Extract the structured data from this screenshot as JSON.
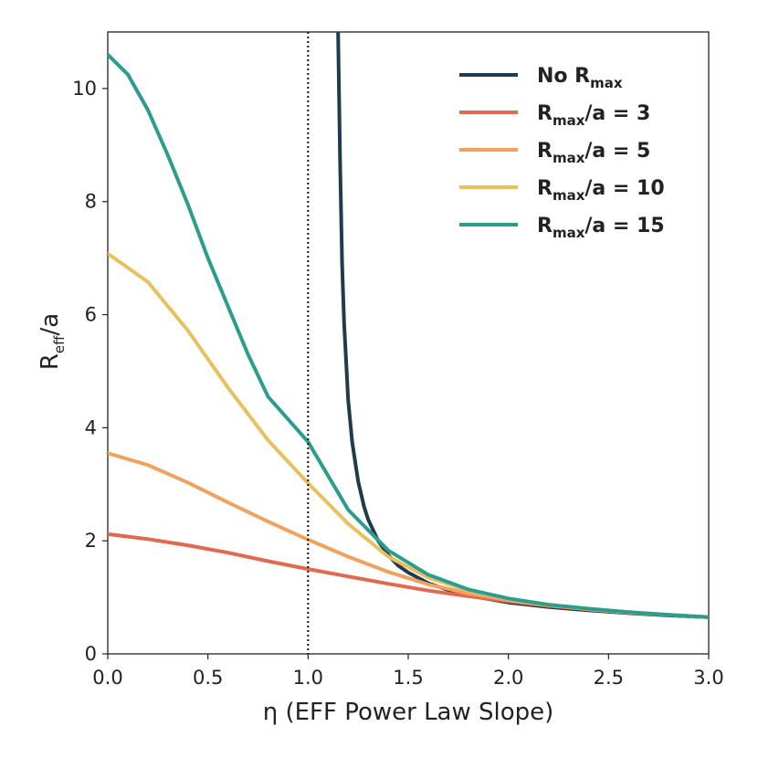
{
  "chart_data": {
    "type": "line",
    "xlabel": "η (EFF Power Law Slope)",
    "ylabel_main": "R",
    "ylabel_sub": "eff",
    "ylabel_rest": "/a",
    "xlim": [
      0,
      3
    ],
    "ylim": [
      0,
      11
    ],
    "xticks": [
      0.0,
      0.5,
      1.0,
      1.5,
      2.0,
      2.5,
      3.0
    ],
    "xtick_labels": [
      "0.0",
      "0.5",
      "1.0",
      "1.5",
      "2.0",
      "2.5",
      "3.0"
    ],
    "yticks": [
      0,
      2,
      4,
      6,
      8,
      10
    ],
    "ytick_labels": [
      "0",
      "2",
      "4",
      "6",
      "8",
      "10"
    ],
    "vline_x": 1.0,
    "series": [
      {
        "name": "No Rmax",
        "label_main": "No R",
        "label_sub": "max",
        "label_rest": "",
        "color": "#1f3b4d",
        "x": [
          1.15,
          1.16,
          1.17,
          1.18,
          1.2,
          1.22,
          1.25,
          1.28,
          1.3,
          1.35,
          1.4,
          1.45,
          1.5,
          1.6,
          1.7,
          1.8,
          1.9,
          2.0,
          2.2,
          2.4,
          2.6,
          2.8,
          3.0
        ],
        "y": [
          11.0,
          8.7,
          6.9,
          5.85,
          4.5,
          3.75,
          3.05,
          2.6,
          2.38,
          2.0,
          1.75,
          1.56,
          1.44,
          1.25,
          1.13,
          1.04,
          0.97,
          0.91,
          0.83,
          0.77,
          0.72,
          0.68,
          0.65
        ]
      },
      {
        "name": "Rmax/a = 3",
        "label_main": "R",
        "label_sub": "max",
        "label_rest": "/a = 3",
        "color": "#e0694e",
        "x": [
          0.0,
          0.2,
          0.4,
          0.6,
          0.8,
          1.0,
          1.2,
          1.4,
          1.6,
          1.8,
          2.0,
          2.2,
          2.4,
          2.6,
          2.8,
          3.0
        ],
        "y": [
          2.12,
          2.03,
          1.92,
          1.79,
          1.64,
          1.5,
          1.37,
          1.24,
          1.12,
          1.02,
          0.93,
          0.85,
          0.79,
          0.73,
          0.69,
          0.65
        ]
      },
      {
        "name": "Rmax/a = 5",
        "label_main": "R",
        "label_sub": "max",
        "label_rest": "/a = 5",
        "color": "#f0a25e",
        "x": [
          0.0,
          0.2,
          0.4,
          0.6,
          0.8,
          1.0,
          1.2,
          1.4,
          1.6,
          1.8,
          2.0,
          2.2,
          2.4,
          2.6,
          2.8,
          3.0
        ],
        "y": [
          3.55,
          3.34,
          3.03,
          2.68,
          2.34,
          2.02,
          1.72,
          1.45,
          1.23,
          1.07,
          0.95,
          0.86,
          0.79,
          0.73,
          0.69,
          0.65
        ]
      },
      {
        "name": "Rmax/a = 10",
        "label_main": "R",
        "label_sub": "max",
        "label_rest": "/a = 10",
        "color": "#e8c15e",
        "x": [
          0.0,
          0.2,
          0.4,
          0.6,
          0.8,
          1.0,
          1.2,
          1.4,
          1.6,
          1.8,
          2.0,
          2.2,
          2.4,
          2.6,
          2.8,
          3.0
        ],
        "y": [
          7.08,
          6.58,
          5.72,
          4.71,
          3.78,
          3.02,
          2.3,
          1.72,
          1.35,
          1.12,
          0.97,
          0.87,
          0.79,
          0.74,
          0.69,
          0.65
        ]
      },
      {
        "name": "Rmax/a = 15",
        "label_main": "R",
        "label_sub": "max",
        "label_rest": "/a = 15",
        "color": "#2a9d8f",
        "x": [
          0.0,
          0.1,
          0.2,
          0.3,
          0.4,
          0.5,
          0.6,
          0.7,
          0.8,
          0.9,
          1.0,
          1.2,
          1.4,
          1.6,
          1.8,
          2.0,
          2.2,
          2.4,
          2.6,
          2.8,
          3.0
        ],
        "y": [
          10.6,
          10.25,
          9.62,
          8.82,
          7.95,
          7.0,
          6.15,
          5.3,
          4.55,
          4.15,
          3.75,
          2.55,
          1.83,
          1.4,
          1.14,
          0.98,
          0.87,
          0.8,
          0.74,
          0.69,
          0.65
        ]
      }
    ]
  }
}
